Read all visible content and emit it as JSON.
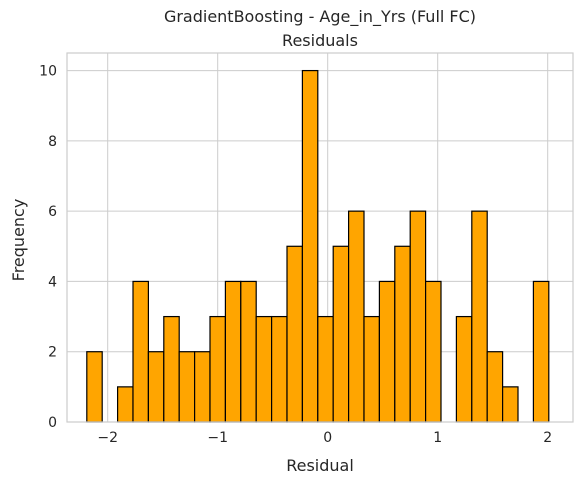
{
  "chart_data": {
    "type": "bar",
    "title": "GradientBoosting - Age_in_Yrs (Full FC)",
    "subtitle": "Residuals",
    "xlabel": "Residual",
    "ylabel": "Frequency",
    "xlim": [
      -2.37,
      2.23
    ],
    "ylim": [
      0,
      10.5
    ],
    "xticks": [
      -2,
      -1,
      0,
      1,
      2
    ],
    "xtick_labels": [
      "−2",
      "−1",
      "0",
      "1",
      "2"
    ],
    "yticks": [
      0,
      2,
      4,
      6,
      8,
      10
    ],
    "ytick_labels": [
      "0",
      "2",
      "4",
      "6",
      "8",
      "10"
    ],
    "grid": true,
    "bar_color": "#ffa500",
    "edge_color": "#000000",
    "bins": [
      {
        "left": -2.19,
        "right": -2.05,
        "count": 2
      },
      {
        "left": -2.05,
        "right": -1.91,
        "count": 0
      },
      {
        "left": -1.91,
        "right": -1.77,
        "count": 1
      },
      {
        "left": -1.77,
        "right": -1.63,
        "count": 4
      },
      {
        "left": -1.63,
        "right": -1.49,
        "count": 2
      },
      {
        "left": -1.49,
        "right": -1.35,
        "count": 3
      },
      {
        "left": -1.35,
        "right": -1.21,
        "count": 2
      },
      {
        "left": -1.21,
        "right": -1.07,
        "count": 2
      },
      {
        "left": -1.07,
        "right": -0.93,
        "count": 3
      },
      {
        "left": -0.93,
        "right": -0.79,
        "count": 4
      },
      {
        "left": -0.79,
        "right": -0.65,
        "count": 4
      },
      {
        "left": -0.65,
        "right": -0.51,
        "count": 3
      },
      {
        "left": -0.51,
        "right": -0.37,
        "count": 3
      },
      {
        "left": -0.37,
        "right": -0.23,
        "count": 5
      },
      {
        "left": -0.23,
        "right": -0.09,
        "count": 10
      },
      {
        "left": -0.09,
        "right": 0.05,
        "count": 3
      },
      {
        "left": 0.05,
        "right": 0.19,
        "count": 5
      },
      {
        "left": 0.19,
        "right": 0.33,
        "count": 6
      },
      {
        "left": 0.33,
        "right": 0.47,
        "count": 3
      },
      {
        "left": 0.47,
        "right": 0.61,
        "count": 4
      },
      {
        "left": 0.61,
        "right": 0.75,
        "count": 5
      },
      {
        "left": 0.75,
        "right": 0.89,
        "count": 6
      },
      {
        "left": 0.89,
        "right": 1.03,
        "count": 4
      },
      {
        "left": 1.03,
        "right": 1.17,
        "count": 0
      },
      {
        "left": 1.17,
        "right": 1.31,
        "count": 3
      },
      {
        "left": 1.31,
        "right": 1.45,
        "count": 6
      },
      {
        "left": 1.45,
        "right": 1.59,
        "count": 2
      },
      {
        "left": 1.59,
        "right": 1.73,
        "count": 1
      },
      {
        "left": 1.73,
        "right": 1.87,
        "count": 0
      },
      {
        "left": 1.87,
        "right": 2.01,
        "count": 4
      }
    ]
  }
}
